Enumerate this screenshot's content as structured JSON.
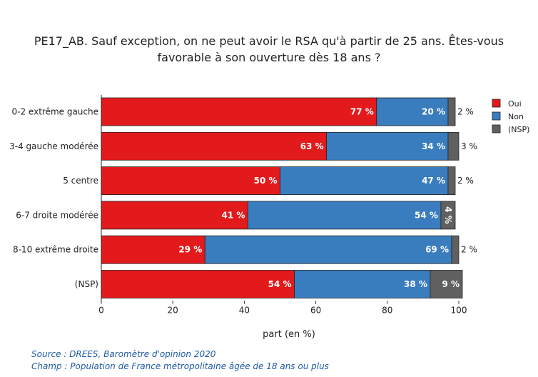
{
  "chart_data": {
    "type": "bar",
    "orientation": "horizontal",
    "stacked": true,
    "title_line1": "PE17_AB. Sauf exception, on ne peut avoir le RSA qu'à partir de 25 ans. Êtes-vous",
    "title_line2": "favorable à son ouverture dès 18 ans ?",
    "xlabel": "part (en %)",
    "ylabel": "",
    "xlim": [
      0,
      100
    ],
    "xticks": [
      "0",
      "20",
      "40",
      "60",
      "80",
      "100"
    ],
    "categories": [
      "0-2 extrême gauche",
      "3-4 gauche modérée",
      "5 centre",
      "6-7 droite modérée",
      "8-10 extrême droite",
      "(NSP)"
    ],
    "series": [
      {
        "name": "Oui",
        "color": "#e31a1c",
        "values": [
          77,
          63,
          50,
          41,
          29,
          54
        ],
        "labels": [
          "77 %",
          "63 %",
          "50 %",
          "41 %",
          "29 %",
          "54 %"
        ]
      },
      {
        "name": "Non",
        "color": "#3a7dbf",
        "values": [
          20,
          34,
          47,
          54,
          69,
          38
        ],
        "labels": [
          "20 %",
          "34 %",
          "47 %",
          "54 %",
          "69 %",
          "38 %"
        ]
      },
      {
        "name": "(NSP)",
        "color": "#606060",
        "values": [
          2,
          3,
          2,
          4,
          2,
          9
        ],
        "labels": [
          "2 %",
          "3 %",
          "2 %",
          "4 %",
          "2 %",
          "9 %"
        ]
      }
    ],
    "legend": [
      "Oui",
      "Non",
      "(NSP)"
    ]
  },
  "source": "Source : DREES, Baromètre d'opinion 2020",
  "champ": "Champ : Population de France métropolitaine âgée de 18 ans ou plus"
}
